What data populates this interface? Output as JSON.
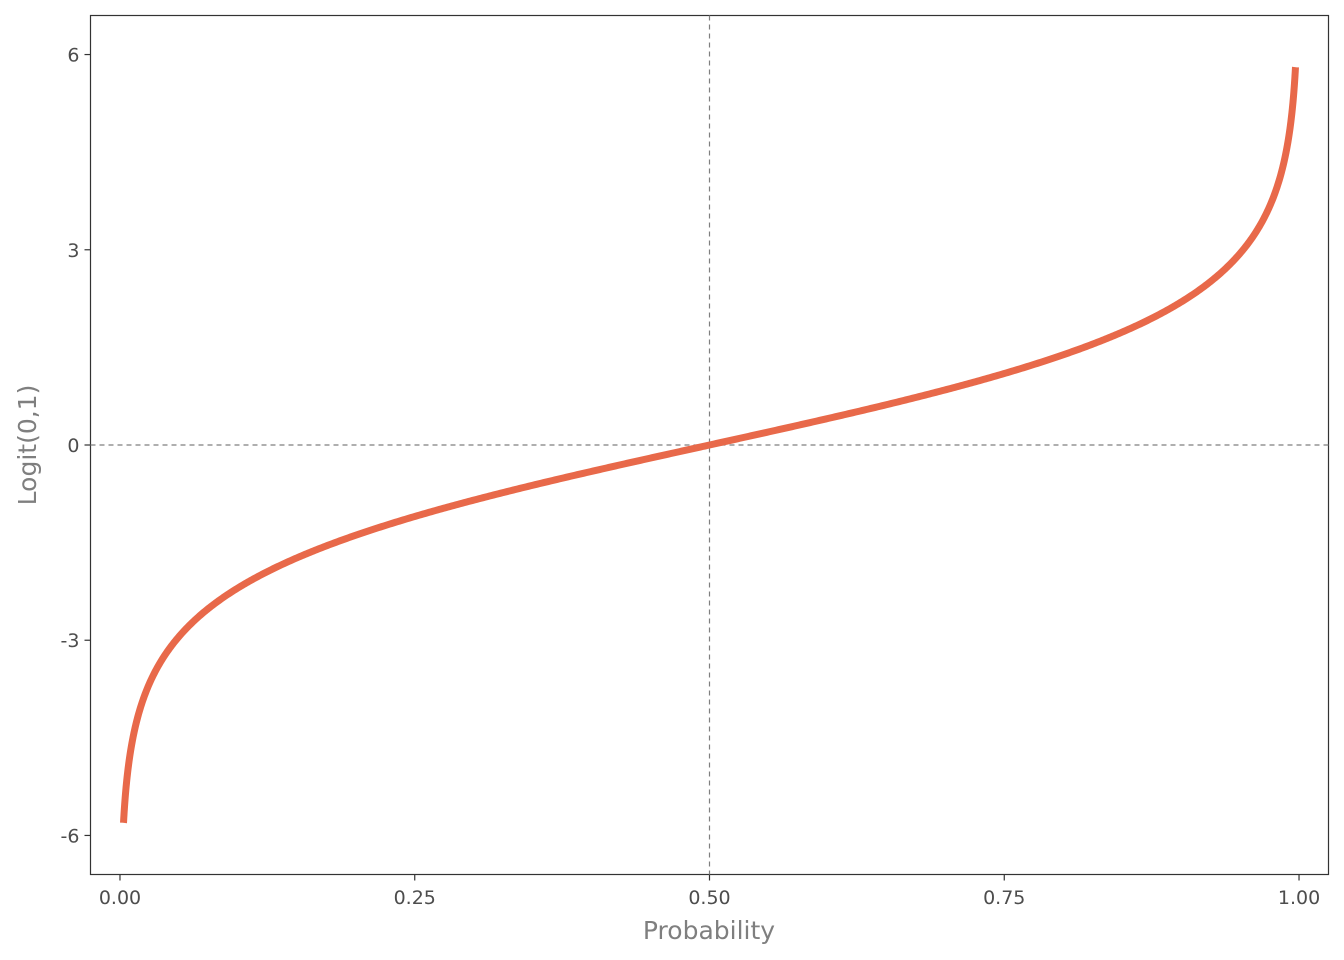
{
  "chart_data": {
    "type": "line",
    "xlabel": "Probability",
    "ylabel": "Logit(0,1)",
    "xlim": [
      -0.025,
      1.025
    ],
    "ylim": [
      -6.6,
      6.6
    ],
    "x_ticks": [
      "0.00",
      "0.25",
      "0.50",
      "0.75",
      "1.00"
    ],
    "x_tick_values": [
      0,
      0.25,
      0.5,
      0.75,
      1
    ],
    "y_ticks": [
      "-6",
      "-3",
      "0",
      "3",
      "6"
    ],
    "y_tick_values": [
      -6,
      -3,
      0,
      3,
      6
    ],
    "reference_lines": [
      {
        "axis": "x",
        "value": 0.5,
        "style": "dashed"
      },
      {
        "axis": "y",
        "value": 0,
        "style": "dashed"
      }
    ],
    "series": [
      {
        "color": "#E8694A",
        "function": "logit",
        "x_range": [
          0.003,
          0.997
        ],
        "points": [
          [
            0.003,
            -5.8
          ],
          [
            0.01,
            -4.6
          ],
          [
            0.02,
            -3.89
          ],
          [
            0.05,
            -2.94
          ],
          [
            0.1,
            -2.2
          ],
          [
            0.15,
            -1.73
          ],
          [
            0.2,
            -1.39
          ],
          [
            0.25,
            -1.1
          ],
          [
            0.3,
            -0.85
          ],
          [
            0.35,
            -0.62
          ],
          [
            0.4,
            -0.41
          ],
          [
            0.45,
            -0.2
          ],
          [
            0.5,
            0.0
          ],
          [
            0.55,
            0.2
          ],
          [
            0.6,
            0.41
          ],
          [
            0.65,
            0.62
          ],
          [
            0.7,
            0.85
          ],
          [
            0.75,
            1.1
          ],
          [
            0.8,
            1.39
          ],
          [
            0.85,
            1.73
          ],
          [
            0.9,
            2.2
          ],
          [
            0.95,
            2.94
          ],
          [
            0.98,
            3.89
          ],
          [
            0.99,
            4.6
          ],
          [
            0.997,
            5.8
          ]
        ]
      }
    ],
    "grid": false,
    "legend": "none"
  }
}
